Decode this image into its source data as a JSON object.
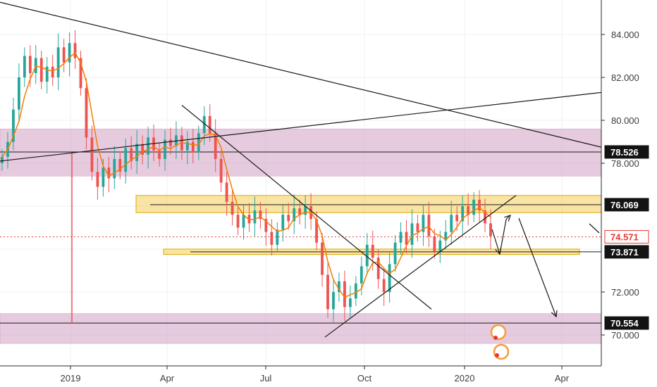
{
  "chart_data": {
    "type": "candlestick",
    "symbol_hint": "",
    "x_ticks": [
      "2019",
      "Apr",
      "Jul",
      "Oct",
      "2020",
      "Apr"
    ],
    "y_ticks": [
      "84.000",
      "82.000",
      "80.000",
      "78.000",
      "72.000",
      "70.000"
    ],
    "ylim": [
      68.2,
      85.6
    ],
    "grid": true,
    "colors": {
      "up": "#26a69a",
      "down": "#ef5350",
      "ma": "#f57c00",
      "zone_pink": "#d8b0cc",
      "zone_yellow": "#f5d46a",
      "line": "#1a1a1a",
      "current_price": "#e53935"
    },
    "price_labels": [
      {
        "id": "level-78526",
        "text": "78.526",
        "value": 78.526,
        "style": "black"
      },
      {
        "id": "level-76069",
        "text": "76.069",
        "value": 76.069,
        "style": "black"
      },
      {
        "id": "current-price",
        "text": "74.571",
        "value": 74.571,
        "style": "red"
      },
      {
        "id": "level-73871",
        "text": "73.871",
        "value": 73.871,
        "style": "black"
      },
      {
        "id": "level-70554",
        "text": "70.554",
        "value": 70.554,
        "style": "black"
      }
    ],
    "zones": [
      {
        "id": "zone-pink-upper",
        "from": 77.4,
        "to": 79.6,
        "color": "pink"
      },
      {
        "id": "zone-yellow-upper",
        "from": 75.7,
        "to": 76.5,
        "color": "yellow"
      },
      {
        "id": "zone-yellow-lower",
        "from": 73.75,
        "to": 74.0,
        "color": "yellow"
      },
      {
        "id": "zone-pink-lower",
        "from": 69.6,
        "to": 71.0,
        "color": "pink"
      }
    ],
    "series_close": [
      78.3,
      79.0,
      80.5,
      82.0,
      83.0,
      82.2,
      82.9,
      81.8,
      82.5,
      82.0,
      83.4,
      82.7,
      83.6,
      82.9,
      81.5,
      79.2,
      77.6,
      76.9,
      77.8,
      77.3,
      78.2,
      77.6,
      78.7,
      78.1,
      78.9,
      78.4,
      79.2,
      78.6,
      78.2,
      79.1,
      78.8,
      79.3,
      78.6,
      79.0,
      78.5,
      79.4,
      80.2,
      79.4,
      78.2,
      77.1,
      76.2,
      75.6,
      75.0,
      75.6,
      75.2,
      75.8,
      75.4,
      74.8,
      74.2,
      74.9,
      75.6,
      75.3,
      75.9,
      75.6,
      76.0,
      75.4,
      74.3,
      72.8,
      71.2,
      72.0,
      72.5,
      71.3,
      71.7,
      72.4,
      73.2,
      74.2,
      73.6,
      72.6,
      72.0,
      73.3,
      74.3,
      74.8,
      74.2,
      75.2,
      74.8,
      75.6,
      74.6,
      73.9,
      74.4,
      74.8,
      75.6,
      75.3,
      76.0,
      75.6,
      76.3,
      75.8,
      75.2,
      74.6
    ]
  }
}
